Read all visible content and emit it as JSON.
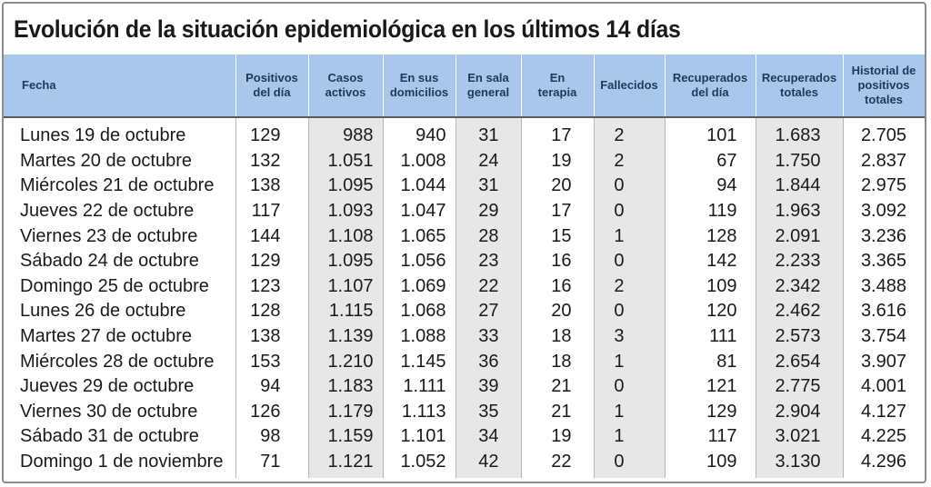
{
  "title": "Evolución de la situación epidemiológica en los últimos 14 días",
  "chart_data": {
    "type": "table",
    "title": "Evolución de la situación epidemiológica en los últimos 14 días",
    "columns": [
      "Fecha",
      "Positivos\ndel día",
      "Casos\nactivos",
      "En sus\ndomicilios",
      "En sala\ngeneral",
      "En\nterapia",
      "Fallecidos",
      "Recuperados\ndel día",
      "Recuperados\ntotales",
      "Historial de\npositivos\ntotales"
    ],
    "rows": [
      [
        "Lunes 19 de octubre",
        "129",
        "988",
        "940",
        "31",
        "17",
        "2",
        "101",
        "1.683",
        "2.705"
      ],
      [
        "Martes 20 de octubre",
        "132",
        "1.051",
        "1.008",
        "24",
        "19",
        "2",
        "67",
        "1.750",
        "2.837"
      ],
      [
        "Miércoles 21 de octubre",
        "138",
        "1.095",
        "1.044",
        "31",
        "20",
        "0",
        "94",
        "1.844",
        "2.975"
      ],
      [
        "Jueves 22 de octubre",
        "117",
        "1.093",
        "1.047",
        "29",
        "17",
        "0",
        "119",
        "1.963",
        "3.092"
      ],
      [
        "Viernes 23 de octubre",
        "144",
        "1.108",
        "1.065",
        "28",
        "15",
        "1",
        "128",
        "2.091",
        "3.236"
      ],
      [
        "Sábado 24 de octubre",
        "129",
        "1.095",
        "1.056",
        "23",
        "16",
        "0",
        "142",
        "2.233",
        "3.365"
      ],
      [
        "Domingo 25 de octubre",
        "123",
        "1.107",
        "1.069",
        "22",
        "16",
        "2",
        "109",
        "2.342",
        "3.488"
      ],
      [
        "Lunes 26 de octubre",
        "128",
        "1.115",
        "1.068",
        "27",
        "20",
        "0",
        "120",
        "2.462",
        "3.616"
      ],
      [
        "Martes 27 de octubre",
        "138",
        "1.139",
        "1.088",
        "33",
        "18",
        "3",
        "111",
        "2.573",
        "3.754"
      ],
      [
        "Miércoles 28 de octubre",
        "153",
        "1.210",
        "1.145",
        "36",
        "18",
        "1",
        "81",
        "2.654",
        "3.907"
      ],
      [
        "Jueves 29 de octubre",
        "94",
        "1.183",
        "1.111",
        "39",
        "21",
        "0",
        "121",
        "2.775",
        "4.001"
      ],
      [
        "Viernes 30 de octubre",
        "126",
        "1.179",
        "1.113",
        "35",
        "21",
        "1",
        "129",
        "2.904",
        "4.127"
      ],
      [
        "Sábado 31 de octubre",
        "98",
        "1.159",
        "1.101",
        "34",
        "19",
        "1",
        "117",
        "3.021",
        "4.225"
      ],
      [
        "Domingo 1 de noviembre",
        "71",
        "1.121",
        "1.052",
        "42",
        "22",
        "0",
        "109",
        "3.130",
        "4.296"
      ]
    ]
  },
  "colors": {
    "header_bg": "#a9c7ea",
    "header_text": "#1f3a57",
    "shaded_column": "#e7e7e7"
  }
}
